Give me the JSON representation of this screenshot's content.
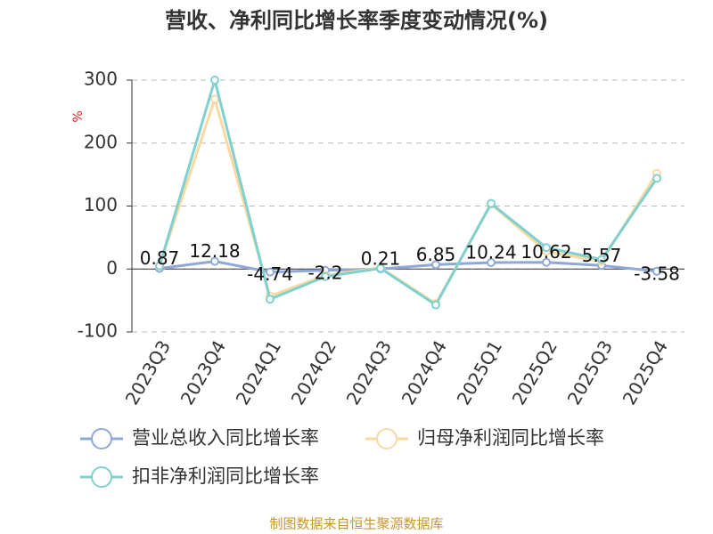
{
  "chart_data": {
    "type": "line",
    "title": "营收、净利同比增长率季度变动情况(%)",
    "y_label": "%",
    "categories": [
      "2023Q3",
      "2023Q4",
      "2024Q1",
      "2024Q2",
      "2024Q3",
      "2024Q4",
      "2025Q1",
      "2025Q2",
      "2025Q3",
      "2025Q4"
    ],
    "series": [
      {
        "name": "营业总收入同比增长率",
        "color": "#8ea8d8",
        "values": [
          0.87,
          12.18,
          -4.74,
          -2.2,
          0.21,
          6.85,
          10.24,
          10.62,
          5.57,
          -3.58
        ],
        "show_labels": true
      },
      {
        "name": "归母净利润同比增长率",
        "color": "#f8d9a2",
        "values": [
          5,
          270,
          -43,
          -10,
          2,
          -55,
          103,
          28,
          12,
          152
        ]
      },
      {
        "name": "扣非净利润同比增长率",
        "color": "#80d0d0",
        "values": [
          5,
          300,
          -48,
          -12,
          1,
          -57,
          104,
          34,
          15,
          144
        ]
      }
    ],
    "ylim": [
      -100,
      300
    ],
    "yticks": [
      -100,
      0,
      100,
      200,
      300
    ],
    "grid": true,
    "source": "制图数据来自恒生聚源数据库"
  }
}
